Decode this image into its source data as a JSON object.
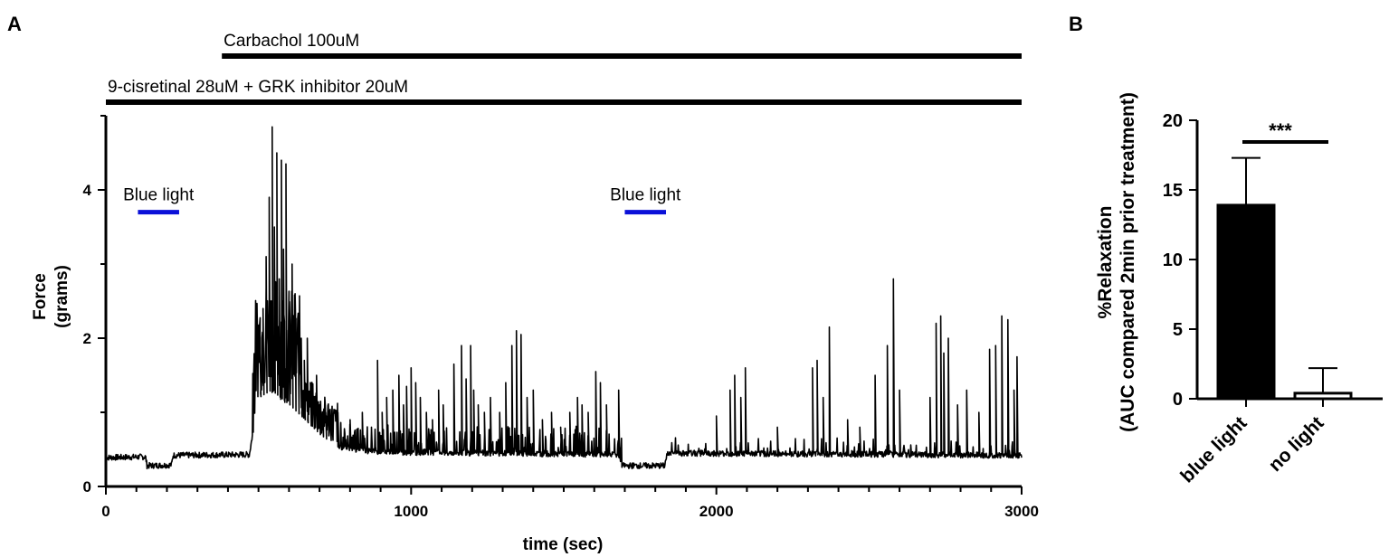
{
  "panel_a_letter": "A",
  "panel_b_letter": "B",
  "chart_data": [
    {
      "type": "line",
      "title": "",
      "xlabel": "time (sec)",
      "ylabel": [
        "Force",
        "(grams)"
      ],
      "xlim": [
        0,
        3000
      ],
      "ylim": [
        0,
        5
      ],
      "x_ticks": [
        0,
        1000,
        2000,
        3000
      ],
      "x_tick_labels": [
        "0",
        "1000",
        "2000",
        "3000"
      ],
      "y_ticks": [
        0,
        2,
        4
      ],
      "y_tick_labels": [
        "0",
        "2",
        "4"
      ],
      "x_minor_step": 100,
      "y_minor_step": 1,
      "line_color": "#000000",
      "treatment_bars": [
        {
          "label": "Carbachol 100uM",
          "x_start": 380,
          "x_end": 3000
        },
        {
          "label": "9-cisretinal 28uM + GRK inhibitor 20uM",
          "x_start": 0,
          "x_end": 3000
        }
      ],
      "light_bars": [
        {
          "label": "Blue light",
          "x_start": 105,
          "x_end": 240,
          "y": 3.7,
          "color": "#0a10d8"
        },
        {
          "label": "Blue light",
          "x_start": 1700,
          "x_end": 1835,
          "y": 3.7,
          "color": "#0a10d8"
        }
      ],
      "series": [
        {
          "baseline": [
            [
              0,
              0.39
            ],
            [
              130,
              0.4
            ],
            [
              135,
              0.28
            ],
            [
              215,
              0.29
            ],
            [
              220,
              0.42
            ],
            [
              470,
              0.43
            ],
            [
              500,
              1.2
            ],
            [
              540,
              1.3
            ],
            [
              600,
              1.1
            ],
            [
              700,
              0.7
            ],
            [
              750,
              0.55
            ],
            [
              850,
              0.48
            ],
            [
              1000,
              0.46
            ],
            [
              1500,
              0.44
            ],
            [
              1680,
              0.43
            ],
            [
              1690,
              0.28
            ],
            [
              1830,
              0.28
            ],
            [
              1840,
              0.45
            ],
            [
              3000,
              0.42
            ]
          ],
          "noise_amplitude": 0.04,
          "peaks": [
            [
              505,
              1.8
            ],
            [
              515,
              2.4
            ],
            [
              525,
              3.1
            ],
            [
              535,
              3.9
            ],
            [
              545,
              4.85
            ],
            [
              552,
              3.5
            ],
            [
              560,
              4.5
            ],
            [
              568,
              2.8
            ],
            [
              575,
              4.4
            ],
            [
              582,
              3.2
            ],
            [
              590,
              4.35
            ],
            [
              600,
              2.2
            ],
            [
              610,
              3.0
            ],
            [
              620,
              2.6
            ],
            [
              630,
              2.2
            ],
            [
              640,
              2.0
            ],
            [
              650,
              1.7
            ],
            [
              660,
              2.0
            ],
            [
              670,
              1.4
            ],
            [
              680,
              1.2
            ],
            [
              690,
              1.5
            ],
            [
              700,
              1.1
            ],
            [
              710,
              0.9
            ],
            [
              720,
              1.0
            ],
            [
              760,
              1.0
            ],
            [
              800,
              0.9
            ],
            [
              840,
              1.0
            ],
            [
              870,
              0.8
            ],
            [
              890,
              1.7
            ],
            [
              905,
              1.0
            ],
            [
              920,
              1.2
            ],
            [
              940,
              1.3
            ],
            [
              960,
              1.5
            ],
            [
              975,
              1.1
            ],
            [
              985,
              1.35
            ],
            [
              1000,
              1.6
            ],
            [
              1015,
              1.4
            ],
            [
              1030,
              1.2
            ],
            [
              1050,
              1.0
            ],
            [
              1070,
              0.9
            ],
            [
              1090,
              1.3
            ],
            [
              1105,
              1.1
            ],
            [
              1140,
              1.65
            ],
            [
              1165,
              1.9
            ],
            [
              1180,
              1.45
            ],
            [
              1195,
              1.9
            ],
            [
              1205,
              1.3
            ],
            [
              1220,
              1.1
            ],
            [
              1240,
              1.0
            ],
            [
              1260,
              1.2
            ],
            [
              1290,
              1.0
            ],
            [
              1310,
              1.4
            ],
            [
              1330,
              1.9
            ],
            [
              1345,
              2.1
            ],
            [
              1360,
              2.05
            ],
            [
              1380,
              1.2
            ],
            [
              1400,
              1.3
            ],
            [
              1430,
              0.9
            ],
            [
              1460,
              1.0
            ],
            [
              1490,
              0.8
            ],
            [
              1520,
              1.0
            ],
            [
              1545,
              1.2
            ],
            [
              1560,
              1.1
            ],
            [
              1580,
              1.0
            ],
            [
              1605,
              1.55
            ],
            [
              1620,
              1.4
            ],
            [
              1640,
              1.1
            ],
            [
              1680,
              1.3
            ],
            [
              2045,
              1.3
            ],
            [
              2060,
              1.5
            ],
            [
              2080,
              1.2
            ],
            [
              2095,
              1.6
            ],
            [
              2000,
              0.95
            ],
            [
              2200,
              0.8
            ],
            [
              2315,
              1.6
            ],
            [
              2330,
              1.7
            ],
            [
              2350,
              1.2
            ],
            [
              2370,
              2.15
            ],
            [
              2430,
              0.9
            ],
            [
              2470,
              0.8
            ],
            [
              2520,
              1.5
            ],
            [
              2560,
              1.9
            ],
            [
              2580,
              2.8
            ],
            [
              2600,
              1.3
            ],
            [
              2700,
              1.2
            ],
            [
              2720,
              2.2
            ],
            [
              2735,
              2.3
            ],
            [
              2745,
              1.8
            ],
            [
              2760,
              2.0
            ],
            [
              2790,
              1.1
            ],
            [
              2820,
              1.3
            ],
            [
              2860,
              1.0
            ],
            [
              2895,
              1.85
            ],
            [
              2915,
              1.9
            ],
            [
              2935,
              2.3
            ],
            [
              2955,
              2.25
            ],
            [
              2975,
              1.3
            ],
            [
              2985,
              1.75
            ]
          ]
        }
      ]
    },
    {
      "type": "bar",
      "title": "",
      "xlabel": "",
      "ylabel": [
        "%Relaxation",
        "(AUC compared 2min prior treatment)"
      ],
      "ylim": [
        0,
        20
      ],
      "y_ticks": [
        0,
        5,
        10,
        15,
        20
      ],
      "y_tick_labels": [
        "0",
        "5",
        "10",
        "15",
        "20"
      ],
      "categories": [
        "blue light",
        "no light"
      ],
      "values": [
        13.9,
        0.4
      ],
      "error_upper": [
        17.3,
        2.2
      ],
      "bar_colors": [
        "#000000",
        "#000000"
      ],
      "significance": "***"
    }
  ]
}
